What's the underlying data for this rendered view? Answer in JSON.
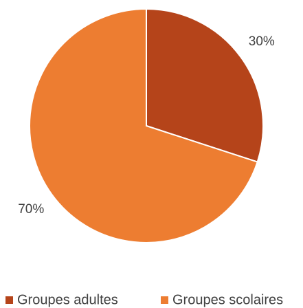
{
  "chart_data": {
    "type": "pie",
    "categories": [
      "Groupes adultes",
      "Groupes scolaires"
    ],
    "values": [
      30,
      70
    ],
    "value_labels": [
      "30%",
      "70%"
    ],
    "colors": [
      "#b5441a",
      "#ed7d31"
    ],
    "legend": "bottom"
  }
}
